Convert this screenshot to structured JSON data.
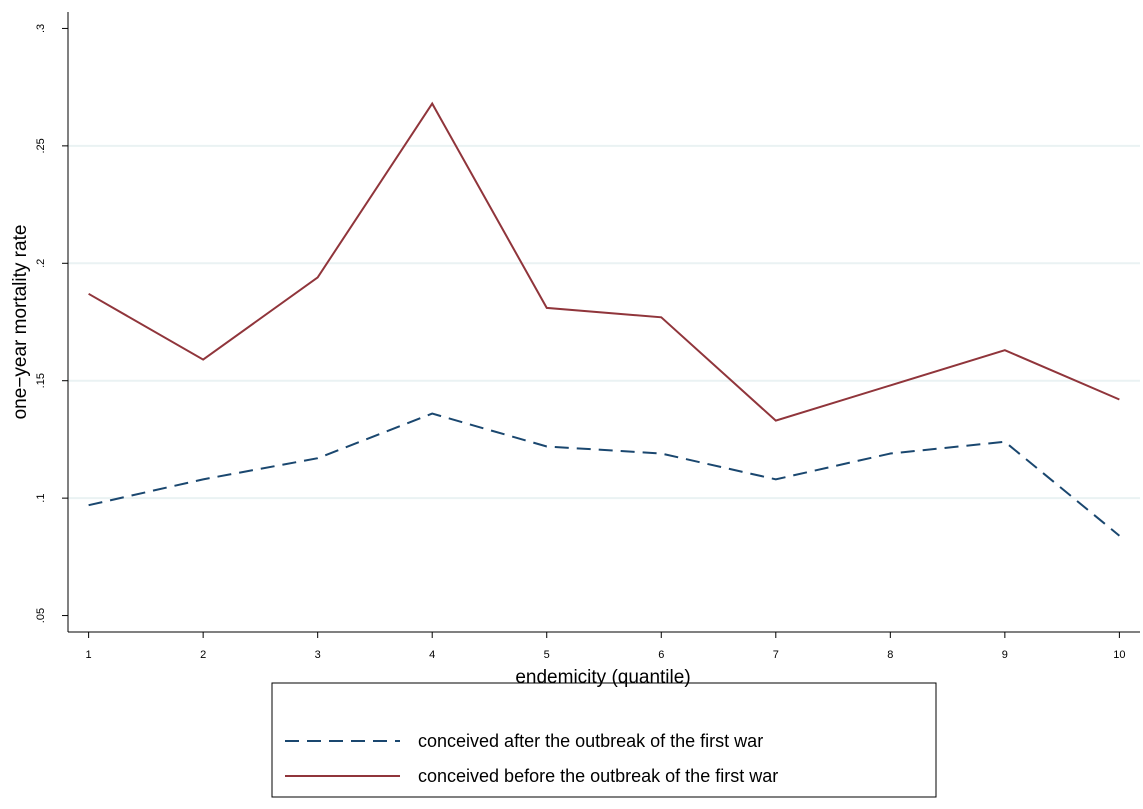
{
  "chart_data": {
    "type": "line",
    "x_label": "endemicity (quantile)",
    "y_label": "one−year mortality rate",
    "x": [
      1,
      2,
      3,
      4,
      5,
      6,
      7,
      8,
      9,
      10
    ],
    "series": [
      {
        "name": "conceived after the outbreak of the first war",
        "color": "#1a476f",
        "dash": true,
        "values": [
          0.097,
          0.108,
          0.117,
          0.136,
          0.122,
          0.119,
          0.108,
          0.119,
          0.124,
          0.084
        ]
      },
      {
        "name": "conceived before the outbreak of the first war",
        "color": "#90353b",
        "dash": false,
        "values": [
          0.187,
          0.159,
          0.194,
          0.268,
          0.181,
          0.177,
          0.133,
          0.148,
          0.163,
          0.142
        ]
      }
    ],
    "xlim": [
      0.82,
      10.18
    ],
    "xticks": [
      1,
      2,
      3,
      4,
      5,
      6,
      7,
      8,
      9,
      10
    ],
    "ylim": [
      0.043,
      0.307
    ],
    "yticks": [
      {
        "value": 0.05,
        "label": ".05"
      },
      {
        "value": 0.1,
        "label": ".1"
      },
      {
        "value": 0.15,
        "label": ".15"
      },
      {
        "value": 0.2,
        "label": ".2"
      },
      {
        "value": 0.25,
        "label": ".25"
      },
      {
        "value": 0.3,
        "label": ".3"
      }
    ],
    "grid": true,
    "legend": "bottom"
  }
}
